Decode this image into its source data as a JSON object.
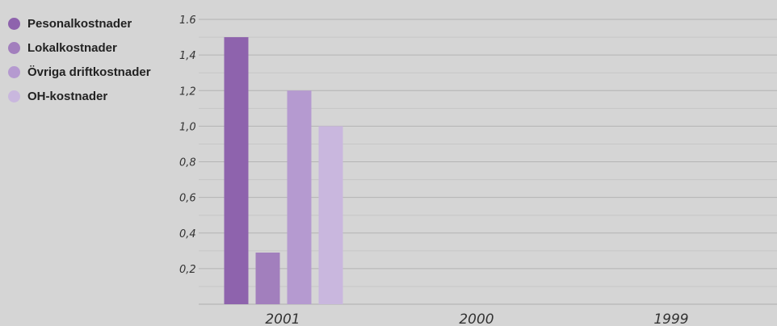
{
  "chart_data": {
    "type": "bar",
    "title": "",
    "xlabel": "",
    "ylabel": "",
    "categories": [
      "2001",
      "2000",
      "1999"
    ],
    "series": [
      {
        "name": "Pesonalkostnader",
        "color": "#8e63ad",
        "values": [
          1.5,
          null,
          null
        ]
      },
      {
        "name": "Lokalkostnader",
        "color": "#a27fbd",
        "values": [
          0.29,
          null,
          null
        ]
      },
      {
        "name": "Övriga driftkostnader",
        "color": "#b59ad0",
        "values": [
          1.2,
          null,
          null
        ]
      },
      {
        "name": "OH-kostnader",
        "color": "#c9b7de",
        "values": [
          1.0,
          null,
          null
        ]
      }
    ],
    "ylim": [
      0,
      1.6
    ],
    "y_tick_labels": [
      "0,2",
      "0,4",
      "0,6",
      "0,8",
      "1,0",
      "1,2",
      "1,4",
      "1.6"
    ],
    "grid": true,
    "legend_position": "top-left"
  }
}
